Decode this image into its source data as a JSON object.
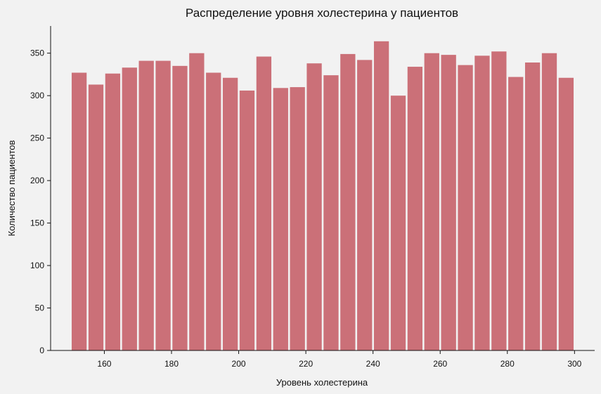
{
  "chart_data": {
    "type": "bar",
    "title": "Распределение уровня холестерина у пациентов",
    "xlabel": "Уровень холестерина",
    "ylabel": "Количество пациентов",
    "bin_edges": [
      150,
      155,
      160,
      165,
      170,
      175,
      180,
      185,
      190,
      195,
      200,
      205,
      210,
      215,
      220,
      225,
      230,
      235,
      240,
      245,
      250,
      255,
      260,
      265,
      270,
      275,
      280,
      285,
      290,
      295,
      300
    ],
    "values": [
      327,
      313,
      326,
      333,
      341,
      341,
      335,
      350,
      327,
      321,
      306,
      346,
      309,
      310,
      338,
      324,
      349,
      342,
      364,
      300,
      334,
      350,
      348,
      336,
      347,
      352,
      322,
      339,
      350,
      321
    ],
    "xlim": [
      144,
      306
    ],
    "ylim": [
      0,
      382
    ],
    "x_ticks": [
      160,
      180,
      200,
      220,
      240,
      260,
      280,
      300
    ],
    "y_ticks": [
      0,
      50,
      100,
      150,
      200,
      250,
      300,
      350
    ],
    "bar_color": "#cb7078",
    "background_color": "#f2f2f2",
    "grid": false
  }
}
